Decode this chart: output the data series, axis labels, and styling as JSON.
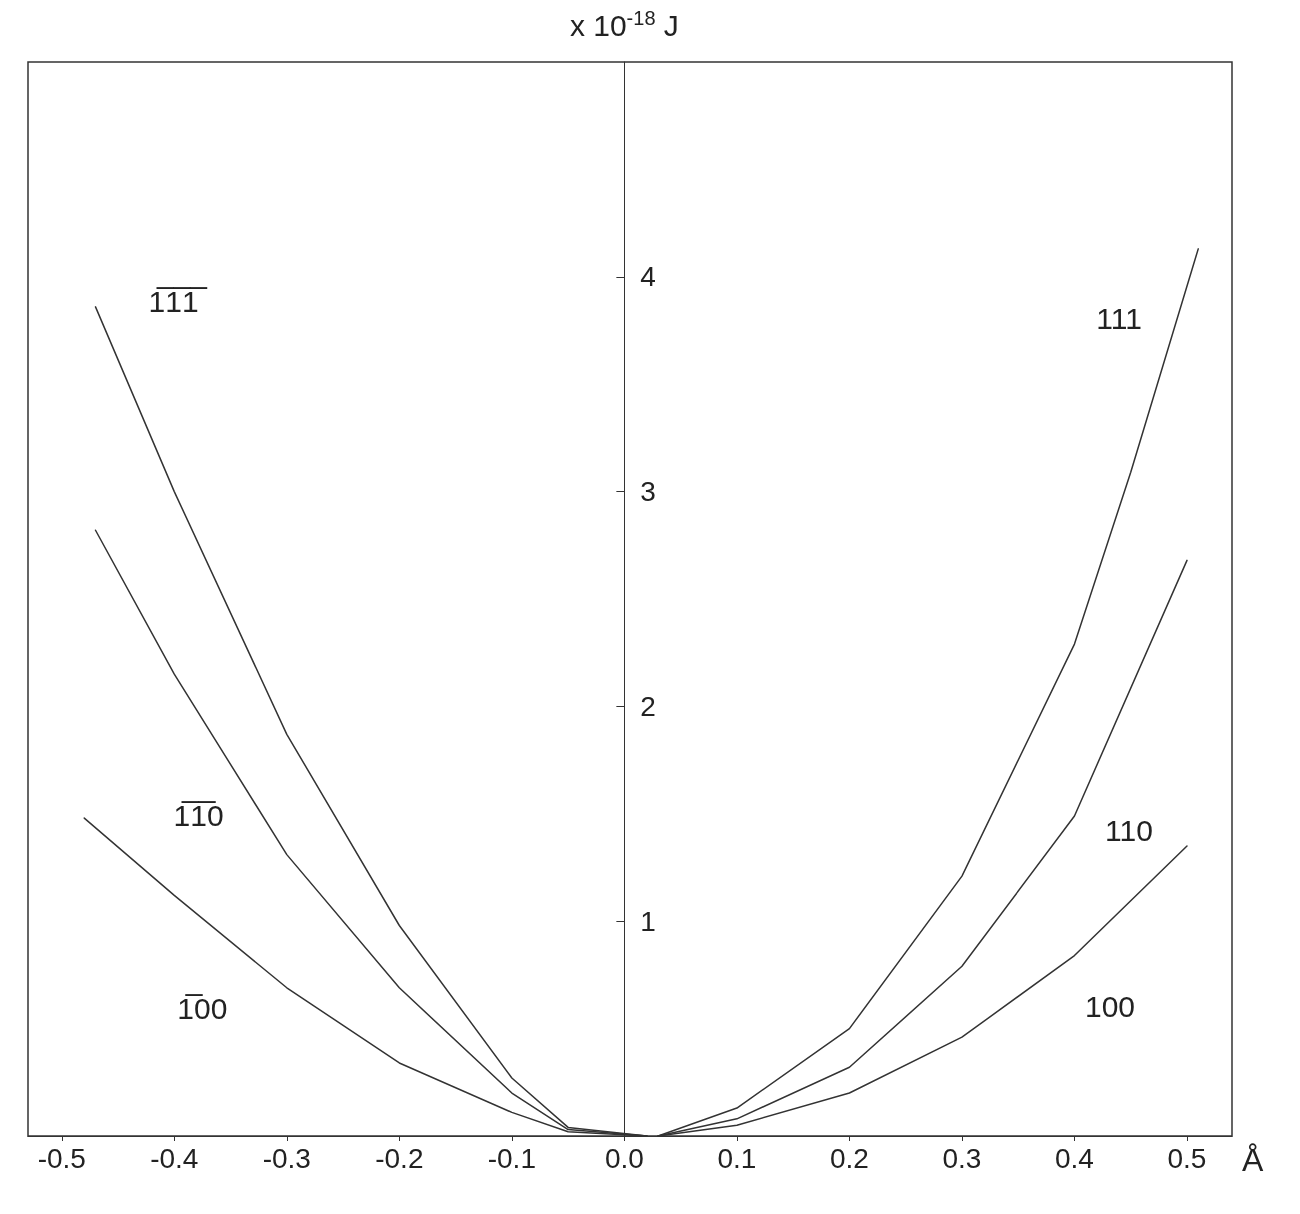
{
  "chart_data": {
    "type": "line",
    "xlabel": "Å",
    "ylabel": "x 10$^{-18}$ J",
    "xlim": [
      -0.53,
      0.54
    ],
    "ylim": [
      0,
      5
    ],
    "xticks": [
      -0.5,
      -0.4,
      -0.3,
      -0.2,
      -0.1,
      {
        "value": 0,
        "label": "0.0"
      },
      0.1,
      0.2,
      0.3,
      0.4,
      0.5
    ],
    "yticks": [
      1,
      2,
      3,
      4
    ],
    "grid": false,
    "legend": false,
    "marker": "none",
    "line_style": "solid",
    "series": [
      {
        "name": "111",
        "color": "#333333",
        "x": [
          0.03,
          0.1,
          0.2,
          0.3,
          0.4,
          0.45,
          0.51
        ],
        "values": [
          0,
          0.13,
          0.5,
          1.21,
          2.29,
          3.09,
          4.13
        ]
      },
      {
        "name": "110",
        "color": "#333333",
        "x": [
          0.03,
          0.1,
          0.2,
          0.3,
          0.4,
          0.5
        ],
        "values": [
          0,
          0.08,
          0.32,
          0.79,
          1.49,
          2.68
        ]
      },
      {
        "name": "100",
        "color": "#333333",
        "x": [
          0.03,
          0.1,
          0.2,
          0.3,
          0.4,
          0.5
        ],
        "values": [
          0,
          0.05,
          0.2,
          0.46,
          0.84,
          1.35
        ]
      },
      {
        "name": "1̅1̅1̅",
        "color": "#333333",
        "x": [
          0.02,
          -0.05,
          -0.1,
          -0.2,
          -0.3,
          -0.4,
          -0.47
        ],
        "values": [
          0,
          0.04,
          0.27,
          0.98,
          1.87,
          3.0,
          3.86
        ]
      },
      {
        "name": "1̅1̅0",
        "color": "#333333",
        "x": [
          0.02,
          -0.05,
          -0.1,
          -0.2,
          -0.3,
          -0.4,
          -0.47
        ],
        "values": [
          0,
          0.03,
          0.2,
          0.69,
          1.31,
          2.15,
          2.82
        ]
      },
      {
        "name": "1̅00",
        "color": "#333333",
        "x": [
          0.02,
          -0.05,
          -0.1,
          -0.2,
          -0.3,
          -0.4,
          -0.48
        ],
        "values": [
          0,
          0.02,
          0.11,
          0.34,
          0.69,
          1.12,
          1.48
        ]
      }
    ]
  }
}
